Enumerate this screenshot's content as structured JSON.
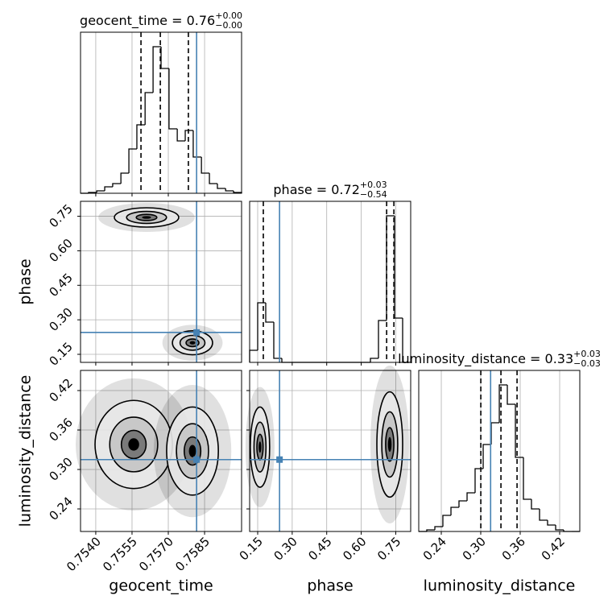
{
  "chart_data": {
    "type": "corner",
    "grid": true,
    "truth_color": "#4682b4",
    "parameters": [
      {
        "label": "geocent_time",
        "lim": [
          0.75337,
          0.76003
        ],
        "ticks": [
          {
            "value": 0.754,
            "label": "0.7540"
          },
          {
            "value": 0.7555,
            "label": "0.7555"
          },
          {
            "value": 0.757,
            "label": "0.7570"
          },
          {
            "value": 0.7585,
            "label": "0.7585"
          }
        ],
        "truth": 0.75817,
        "quantiles": [
          0.75587,
          0.75667,
          0.75783
        ],
        "title": {
          "text": "geocent_time = 0.76",
          "sup": "+0.00",
          "sub": "−0.00"
        },
        "bins": [
          0.75337,
          0.7537,
          0.75404,
          0.75437,
          0.7547,
          0.75504,
          0.75537,
          0.7557,
          0.75604,
          0.75637,
          0.7567,
          0.75703,
          0.75737,
          0.7577,
          0.75803,
          0.75837,
          0.7587,
          0.75903,
          0.75937,
          0.7597,
          0.76003
        ],
        "counts": [
          0,
          1,
          3,
          8,
          12,
          25,
          55,
          85,
          125,
          182,
          155,
          80,
          65,
          78,
          45,
          25,
          12,
          6,
          3,
          1
        ],
        "ylim": [
          0,
          200
        ]
      },
      {
        "label": "phase",
        "lim": [
          0.115,
          0.815
        ],
        "ticks": [
          0.15,
          {
            "value": 0.3,
            "label": "0.30"
          },
          0.45,
          {
            "value": 0.6,
            "label": "0.60"
          },
          0.75
        ],
        "truth": 0.245,
        "quantiles": [
          0.1745,
          0.7105,
          0.742
        ],
        "title": {
          "text": "phase = 0.72",
          "sup": "+0.03",
          "sub": "−0.54"
        },
        "bins": [
          0.115,
          0.15,
          0.185,
          0.22,
          0.255,
          0.29,
          0.325,
          0.36,
          0.395,
          0.43,
          0.465,
          0.5,
          0.535,
          0.57,
          0.605,
          0.64,
          0.675,
          0.71,
          0.745,
          0.78,
          0.815
        ],
        "counts": [
          15,
          74,
          50,
          5,
          0,
          0,
          0,
          0,
          0,
          0,
          0,
          0,
          0,
          0,
          0,
          5,
          52,
          182,
          55,
          0
        ],
        "ylim": [
          0,
          200
        ]
      },
      {
        "label": "luminosity_distance",
        "lim": [
          0.2057,
          0.4506
        ],
        "ticks": [
          0.24,
          {
            "value": 0.3,
            "label": "0.30"
          },
          0.36,
          0.42
        ],
        "truth": 0.315,
        "quantiles": [
          0.3001,
          0.3307,
          0.3552
        ],
        "title": {
          "text": "luminosity_distance = 0.33",
          "sup": "+0.03",
          "sub": "−0.03"
        },
        "bins": [
          0.2057,
          0.2179,
          0.2302,
          0.2424,
          0.2547,
          0.2669,
          0.2792,
          0.2914,
          0.3037,
          0.3159,
          0.3282,
          0.3404,
          0.3527,
          0.3649,
          0.3771,
          0.3894,
          0.4016,
          0.4139,
          0.4261,
          0.4384,
          0.4506
        ],
        "counts": [
          0,
          2,
          6,
          20,
          30,
          38,
          48,
          78,
          108,
          135,
          182,
          158,
          92,
          40,
          28,
          14,
          8,
          2,
          0,
          0
        ],
        "ylim": [
          0,
          200
        ]
      }
    ],
    "pairs": [
      {
        "x": 0,
        "y": 1,
        "clusters": [
          {
            "x": 0.7561,
            "y": 0.745,
            "sx": 0.00133,
            "sy": 0.042
          },
          {
            "x": 0.758,
            "y": 0.2,
            "sx": 0.00083,
            "sy": 0.052
          }
        ]
      },
      {
        "x": 0,
        "y": 2,
        "clusters": [
          {
            "x": 0.75557,
            "y": 0.338,
            "sx": 0.0016,
            "sy": 0.067
          },
          {
            "x": 0.758,
            "y": 0.328,
            "sx": 0.00107,
            "sy": 0.067
          }
        ]
      },
      {
        "x": 1,
        "y": 2,
        "clusters": [
          {
            "x": 0.16,
            "y": 0.334,
            "sx": 0.042,
            "sy": 0.061
          },
          {
            "x": 0.724,
            "y": 0.338,
            "sx": 0.056,
            "sy": 0.08
          }
        ]
      }
    ]
  }
}
